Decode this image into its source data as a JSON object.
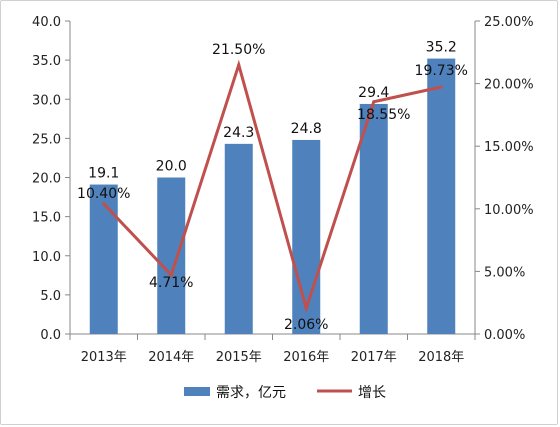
{
  "chart_data": {
    "type": "bar+line",
    "categories": [
      "2013年",
      "2014年",
      "2015年",
      "2016年",
      "2017年",
      "2018年"
    ],
    "series": [
      {
        "name": "需求，亿元",
        "type": "bar",
        "axis": "left",
        "values": [
          19.1,
          20.0,
          24.3,
          24.8,
          29.4,
          35.2
        ],
        "labels": [
          "19.1",
          "20.0",
          "24.3",
          "24.8",
          "29.4",
          "35.2"
        ],
        "color": "#4f81bd"
      },
      {
        "name": "增长",
        "type": "line",
        "axis": "right",
        "values": [
          10.4,
          4.71,
          21.5,
          2.06,
          18.55,
          19.73
        ],
        "labels": [
          "10.40%",
          "4.71%",
          "21.50%",
          "2.06%",
          "18.55%",
          "19.73%"
        ],
        "color": "#c0504d"
      }
    ],
    "y_left": {
      "ylim": [
        0,
        40
      ],
      "ticks": [
        "0.0",
        "5.0",
        "10.0",
        "15.0",
        "20.0",
        "25.0",
        "30.0",
        "35.0",
        "40.0"
      ]
    },
    "y_right": {
      "ylim": [
        0,
        25
      ],
      "ticks": [
        "0.00%",
        "5.00%",
        "10.00%",
        "15.00%",
        "20.00%",
        "25.00%"
      ]
    },
    "legend_position": "bottom",
    "grid": false
  }
}
